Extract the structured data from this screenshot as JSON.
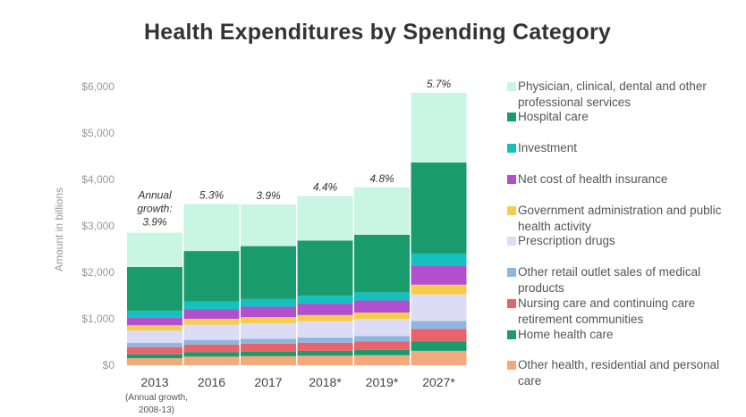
{
  "chart_data": {
    "type": "bar",
    "stacked": true,
    "title": "Health Expenditures by Spending Category",
    "ylabel": "Amount in billions",
    "ylim": [
      0,
      6000
    ],
    "yticks": [
      "$0",
      "$1,000",
      "$2,000",
      "$3,000",
      "$4,000",
      "$5,000",
      "$6,000"
    ],
    "categories": [
      "2013",
      "2016",
      "2017",
      "2018*",
      "2019*",
      "2027*"
    ],
    "category_sub": {
      "2013": "(Annual growth, 2008-13)"
    },
    "growth_labels": [
      "Annual growth: 3.9%",
      "5.3%",
      "3.9%",
      "4.4%",
      "4.8%",
      "5.7%"
    ],
    "series": [
      {
        "name": "Other health, residential and personal care",
        "color": "#f4a97c",
        "values": [
          150,
          185,
          195,
          205,
          215,
          310
        ]
      },
      {
        "name": "Home health care",
        "color": "#1a9b6c",
        "values": [
          85,
          95,
          100,
          105,
          115,
          200
        ]
      },
      {
        "name": "Nursing care and continuing care retirement communities",
        "color": "#e8636b",
        "values": [
          155,
          165,
          170,
          175,
          185,
          270
        ]
      },
      {
        "name": "Other retail outlet sales of medical products",
        "color": "#8fb6dc",
        "values": [
          90,
          100,
          105,
          110,
          115,
          175
        ]
      },
      {
        "name": "Prescription drugs",
        "color": "#dcdcf6",
        "values": [
          270,
          330,
          335,
          350,
          365,
          570
        ]
      },
      {
        "name": "Government administration and public health activity",
        "color": "#f5cc4b",
        "values": [
          110,
          125,
          130,
          135,
          140,
          210
        ]
      },
      {
        "name": "Net cost of health insurance",
        "color": "#b14fce",
        "values": [
          165,
          210,
          225,
          245,
          260,
          400
        ]
      },
      {
        "name": "Investment",
        "color": "#14c1bf",
        "values": [
          150,
          160,
          165,
          170,
          175,
          270
        ]
      },
      {
        "name": "Hospital care",
        "color": "#1a9b6c",
        "values": [
          940,
          1090,
          1140,
          1190,
          1240,
          1960
        ]
      },
      {
        "name": "Physician, clinical, dental and other professional services",
        "color": "#c9f5e4",
        "values": [
          740,
          1010,
          900,
          960,
          1020,
          1500
        ]
      }
    ],
    "legend_order": [
      9,
      8,
      7,
      6,
      5,
      4,
      3,
      2,
      1,
      0
    ],
    "legend_position": "right",
    "grid": false
  }
}
